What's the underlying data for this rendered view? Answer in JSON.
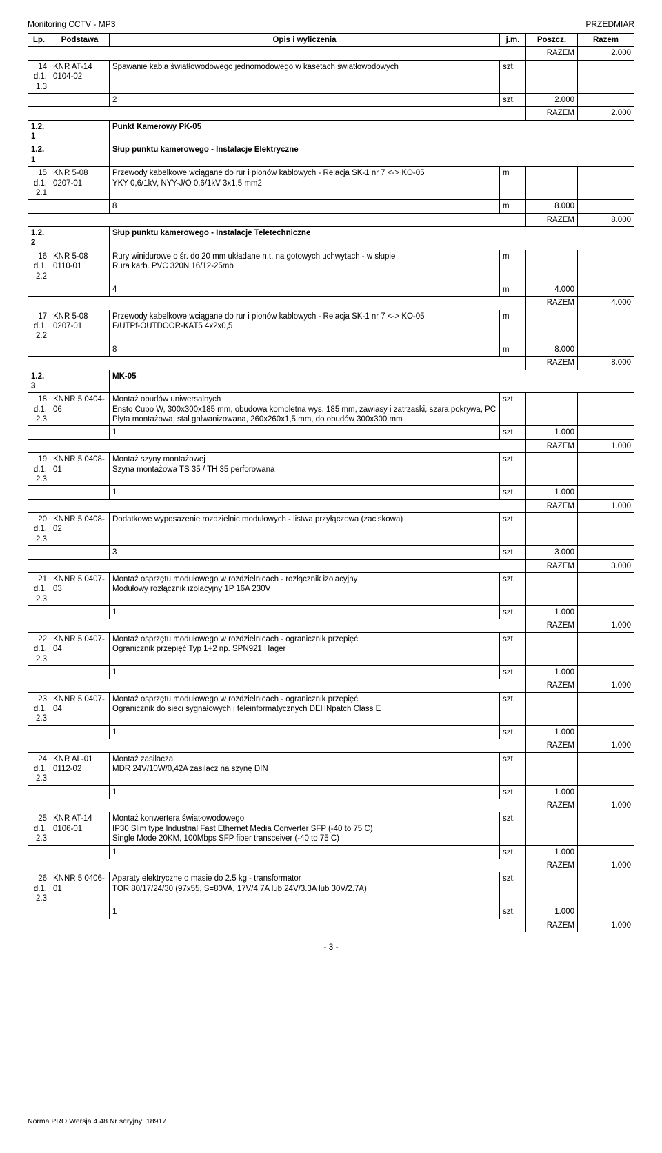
{
  "header": {
    "left": "Monitoring CCTV - MP3",
    "right": "PRZEDMIAR"
  },
  "columns": {
    "lp": "Lp.",
    "podstawa": "Podstawa",
    "opis": "Opis i wyliczenia",
    "jm": "j.m.",
    "poszcz": "Poszcz.",
    "razem": "Razem"
  },
  "razem_label": "RAZEM",
  "rows": [
    {
      "type": "razem",
      "value": "2.000"
    },
    {
      "type": "item",
      "lp": "14",
      "lp2": "d.1.1.3",
      "podstawa": "KNR AT-14 0104-02",
      "opis": "Spawanie kabla światłowodowego jednomodowego w kasetach światłowodowych",
      "jm": "szt."
    },
    {
      "type": "calc",
      "opis": "2",
      "jm": "szt.",
      "poszcz": "2.000"
    },
    {
      "type": "razem",
      "value": "2.000"
    },
    {
      "type": "section",
      "lp": "1.2.1",
      "opis": "Punkt Kamerowy PK-05"
    },
    {
      "type": "section",
      "lp": "1.2.1",
      "opis": "Słup punktu kamerowego - Instalacje Elektryczne"
    },
    {
      "type": "item",
      "lp": "15",
      "lp2": "d.1.2.1",
      "podstawa": "KNR 5-08 0207-01",
      "opis": "Przewody kabelkowe wciągane do rur i pionów kablowych - Relacja SK-1 nr 7 <-> KO-05\nYKY 0,6/1kV, NYY-J/O 0,6/1kV 3x1,5 mm2",
      "jm": "m"
    },
    {
      "type": "calc",
      "opis": "8",
      "jm": "m",
      "poszcz": "8.000"
    },
    {
      "type": "razem",
      "value": "8.000"
    },
    {
      "type": "section",
      "lp": "1.2.2",
      "opis": "Słup punktu kamerowego - Instalacje Teletechniczne"
    },
    {
      "type": "item",
      "lp": "16",
      "lp2": "d.1.2.2",
      "podstawa": "KNR 5-08 0110-01",
      "opis": "Rury winidurowe o śr. do 20 mm układane n.t. na gotowych uchwytach - w słupie\nRura karb. PVC 320N 16/12-25mb",
      "jm": "m"
    },
    {
      "type": "calc",
      "opis": "4",
      "jm": "m",
      "poszcz": "4.000"
    },
    {
      "type": "razem",
      "value": "4.000"
    },
    {
      "type": "item",
      "lp": "17",
      "lp2": "d.1.2.2",
      "podstawa": "KNR 5-08 0207-01",
      "opis": "Przewody kabelkowe wciągane do rur i pionów kablowych - Relacja SK-1 nr 7 <-> KO-05\nF/UTPf-OUTDOOR-KAT5 4x2x0,5",
      "jm": "m"
    },
    {
      "type": "calc",
      "opis": "8",
      "jm": "m",
      "poszcz": "8.000"
    },
    {
      "type": "razem",
      "value": "8.000"
    },
    {
      "type": "section",
      "lp": "1.2.3",
      "opis": "MK-05"
    },
    {
      "type": "item",
      "lp": "18",
      "lp2": "d.1.2.3",
      "podstawa": "KNNR 5 0404-06",
      "opis": "Montaż obudów uniwersalnych\nEnsto Cubo W, 300x300x185 mm, obudowa kompletna wys. 185 mm, zawiasy i zatrzaski, szara pokrywa, PC\nPłyta montażowa, stal galwanizowana, 260x260x1,5 mm, do obudów 300x300 mm",
      "jm": "szt."
    },
    {
      "type": "calc",
      "opis": "1",
      "jm": "szt.",
      "poszcz": "1.000"
    },
    {
      "type": "razem",
      "value": "1.000"
    },
    {
      "type": "item",
      "lp": "19",
      "lp2": "d.1.2.3",
      "podstawa": "KNNR 5 0408-01",
      "opis": "Montaż szyny montażowej\nSzyna montażowa TS 35 / TH 35 perforowana",
      "jm": "szt."
    },
    {
      "type": "calc",
      "opis": "1",
      "jm": "szt.",
      "poszcz": "1.000"
    },
    {
      "type": "razem",
      "value": "1.000"
    },
    {
      "type": "item",
      "lp": "20",
      "lp2": "d.1.2.3",
      "podstawa": "KNNR 5 0408-02",
      "opis": "Dodatkowe wyposażenie rozdzielnic modułowych - listwa przyłączowa (zaciskowa)",
      "jm": "szt."
    },
    {
      "type": "calc",
      "opis": "3",
      "jm": "szt.",
      "poszcz": "3.000"
    },
    {
      "type": "razem",
      "value": "3.000"
    },
    {
      "type": "item",
      "lp": "21",
      "lp2": "d.1.2.3",
      "podstawa": "KNNR 5 0407-03",
      "opis": "Montaż osprzętu modułowego w rozdzielnicach - rozłącznik izolacyjny\nModułowy rozłącznik izolacyjny 1P 16A 230V",
      "jm": "szt."
    },
    {
      "type": "calc",
      "opis": "1",
      "jm": "szt.",
      "poszcz": "1.000"
    },
    {
      "type": "razem",
      "value": "1.000"
    },
    {
      "type": "item",
      "lp": "22",
      "lp2": "d.1.2.3",
      "podstawa": "KNNR 5 0407-04",
      "opis": "Montaż osprzętu modułowego w rozdzielnicach - ogranicznik przepięć\nOgranicznik przepięć Typ 1+2 np. SPN921 Hager",
      "jm": "szt."
    },
    {
      "type": "calc",
      "opis": "1",
      "jm": "szt.",
      "poszcz": "1.000"
    },
    {
      "type": "razem",
      "value": "1.000"
    },
    {
      "type": "item",
      "lp": "23",
      "lp2": "d.1.2.3",
      "podstawa": "KNNR 5 0407-04",
      "opis": "Montaż osprzętu modułowego w rozdzielnicach - ogranicznik przepięć\nOgranicznik do sieci sygnałowych i teleinformatycznych DEHNpatch Class E",
      "jm": "szt."
    },
    {
      "type": "calc",
      "opis": "1",
      "jm": "szt.",
      "poszcz": "1.000"
    },
    {
      "type": "razem",
      "value": "1.000"
    },
    {
      "type": "item",
      "lp": "24",
      "lp2": "d.1.2.3",
      "podstawa": "KNR AL-01 0112-02",
      "opis": "Montaż zasilacza\nMDR 24V/10W/0,42A zasilacz na szynę DIN",
      "jm": "szt."
    },
    {
      "type": "calc",
      "opis": "1",
      "jm": "szt.",
      "poszcz": "1.000"
    },
    {
      "type": "razem",
      "value": "1.000"
    },
    {
      "type": "item",
      "lp": "25",
      "lp2": "d.1.2.3",
      "podstawa": "KNR AT-14 0106-01",
      "opis": "Montaż konwertera światłowodowego\nIP30 Slim type Industrial Fast Ethernet Media Converter SFP (-40 to 75 C)\nSingle Mode 20KM, 100Mbps SFP fiber transceiver (-40 to 75 C)",
      "jm": "szt."
    },
    {
      "type": "calc",
      "opis": "1",
      "jm": "szt.",
      "poszcz": "1.000"
    },
    {
      "type": "razem",
      "value": "1.000"
    },
    {
      "type": "item",
      "lp": "26",
      "lp2": "d.1.2.3",
      "podstawa": "KNNR 5 0406-01",
      "opis": "Aparaty elektryczne o masie do 2.5 kg - transformator\nTOR 80/17/24/30 (97x55, S=80VA, 17V/4.7A lub 24V/3.3A lub 30V/2.7A)",
      "jm": "szt."
    },
    {
      "type": "calc",
      "opis": "1",
      "jm": "szt.",
      "poszcz": "1.000"
    },
    {
      "type": "razem",
      "value": "1.000"
    }
  ],
  "page_number": "- 3 -",
  "footer_note": "Norma PRO Wersja 4.48 Nr seryjny: 18917"
}
